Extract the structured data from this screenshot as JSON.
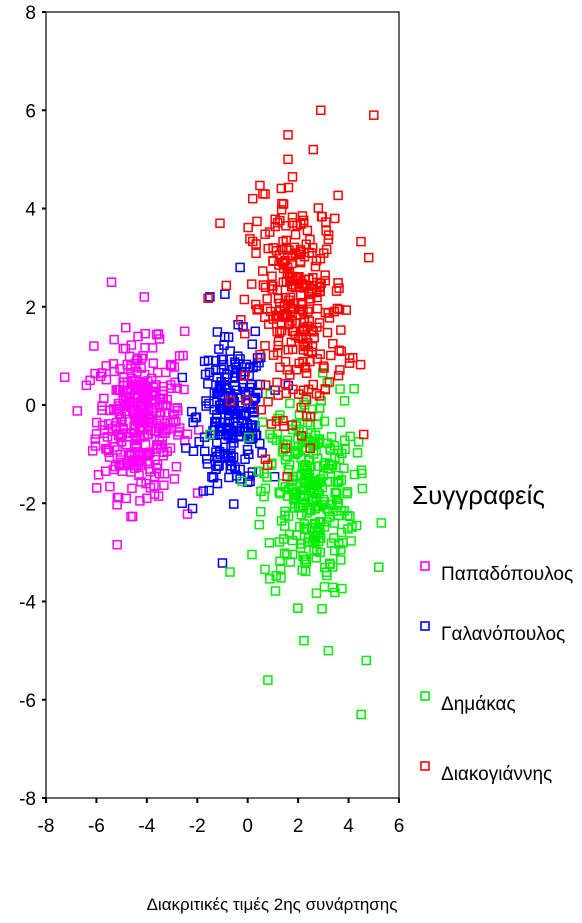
{
  "chart_data": {
    "type": "scatter",
    "title": "",
    "xlabel": "Διακριτικές τιμές 2ης συνάρτησης",
    "ylabel": "",
    "xlim": [
      -8,
      6
    ],
    "ylim": [
      -8,
      8
    ],
    "xticks": [
      "-8",
      "-6",
      "-4",
      "-2",
      "0",
      "2",
      "4",
      "6"
    ],
    "yticks": [
      "8",
      "6",
      "4",
      "2",
      "0",
      "-2",
      "-4",
      "-6",
      "-8"
    ],
    "grid": false,
    "marker": "hollow-square",
    "legend": {
      "title": "Συγγραφείς",
      "placement": "right"
    },
    "series": [
      {
        "name": "Παπαδόπουλος",
        "color": "#ff00ff",
        "cluster": {
          "cx": -4.3,
          "cy": -0.3,
          "sx": 0.85,
          "sy": 0.75,
          "n": 330
        },
        "points": [
          [
            -5.4,
            2.5
          ],
          [
            -4.1,
            2.2
          ],
          [
            -2.5,
            1.5
          ],
          [
            -6.4,
            0.4
          ],
          [
            -4.0,
            -1.9
          ],
          [
            -3.3,
            -1.4
          ],
          [
            -2.7,
            1.0
          ],
          [
            -6.1,
            1.2
          ]
        ]
      },
      {
        "name": "Γαλανόπουλος",
        "color": "#0000ff",
        "cluster": {
          "cx": -0.6,
          "cy": -0.2,
          "sx": 0.7,
          "sy": 0.75,
          "n": 230
        },
        "points": [
          [
            -0.3,
            2.8
          ],
          [
            -1.5,
            2.2
          ],
          [
            -2.6,
            -2.0
          ],
          [
            -1.2,
            -1.6
          ],
          [
            0.3,
            1.5
          ]
        ]
      },
      {
        "name": "Δημάκας",
        "color": "#00ee00",
        "cluster": {
          "cx": 2.4,
          "cy": -1.8,
          "sx": 0.9,
          "sy": 1.05,
          "n": 300
        },
        "points": [
          [
            0.8,
            -5.6
          ],
          [
            4.7,
            -5.2
          ],
          [
            4.5,
            -6.3
          ],
          [
            3.2,
            -5.0
          ],
          [
            5.2,
            -3.3
          ],
          [
            5.3,
            -2.4
          ],
          [
            -0.7,
            -3.4
          ],
          [
            -1.5,
            -0.6
          ]
        ]
      },
      {
        "name": "Διακογιάννης",
        "color": "#ff0000",
        "cluster": {
          "cx": 2.0,
          "cy": 2.0,
          "sx": 0.95,
          "sy": 1.1,
          "n": 290
        },
        "points": [
          [
            2.9,
            6.0
          ],
          [
            5.0,
            5.9
          ],
          [
            1.6,
            5.5
          ],
          [
            2.6,
            5.2
          ],
          [
            1.6,
            5.0
          ],
          [
            -1.1,
            3.7
          ],
          [
            0.6,
            4.3
          ],
          [
            0.2,
            4.2
          ],
          [
            4.8,
            3.0
          ],
          [
            4.6,
            -0.6
          ]
        ]
      }
    ]
  }
}
